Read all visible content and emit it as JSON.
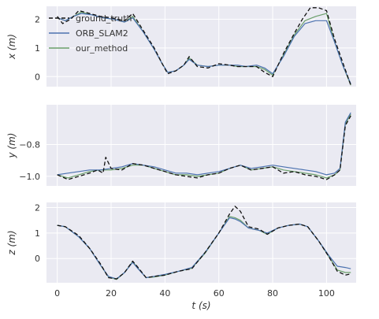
{
  "chart_data": {
    "type": "line",
    "grid": true,
    "legend_placement": "upper-left of top panel",
    "xlabel": "t (s)",
    "xlim": [
      -4,
      111
    ],
    "xticks": [
      0,
      20,
      40,
      60,
      80,
      100
    ],
    "legend": [
      {
        "name": "ground_truth",
        "color": "#111111",
        "dash": true
      },
      {
        "name": "ORB_SLAM2",
        "color": "#4c72b0",
        "dash": false
      },
      {
        "name": "our_method",
        "color": "#6a9f6a",
        "dash": false
      }
    ],
    "panels": [
      {
        "ylabel": "x (m)",
        "ylim": [
          -0.35,
          2.45
        ],
        "yticks": [
          0,
          1,
          2
        ],
        "ytick_labels": [
          "0",
          "1",
          "2"
        ],
        "series": [
          {
            "name": "ground_truth",
            "x": [
              0,
              2,
              5,
              8,
              12,
              16,
              20,
              25,
              28,
              32,
              36,
              39,
              41,
              44,
              47,
              49,
              52,
              56,
              60,
              64,
              67,
              70,
              74,
              77,
              80,
              84,
              88,
              91,
              94,
              97,
              100,
              103,
              106,
              109
            ],
            "y": [
              2.1,
              1.85,
              2.0,
              2.3,
              2.2,
              2.1,
              2.05,
              1.95,
              2.2,
              1.6,
              1.0,
              0.45,
              0.1,
              0.2,
              0.4,
              0.7,
              0.35,
              0.3,
              0.45,
              0.4,
              0.35,
              0.35,
              0.35,
              0.15,
              0.0,
              0.8,
              1.5,
              2.0,
              2.4,
              2.4,
              2.3,
              1.3,
              0.5,
              -0.3
            ]
          },
          {
            "name": "ORB_SLAM2",
            "x": [
              0,
              3,
              6,
              9,
              13,
              17,
              21,
              25,
              28,
              32,
              36,
              39,
              41,
              44,
              47,
              49,
              52,
              56,
              60,
              64,
              67,
              70,
              74,
              77,
              80,
              84,
              88,
              92,
              96,
              100,
              103,
              106,
              109
            ],
            "y": [
              2.05,
              1.95,
              2.1,
              2.2,
              2.15,
              2.05,
              2.0,
              1.9,
              2.05,
              1.55,
              0.95,
              0.45,
              0.15,
              0.2,
              0.4,
              0.6,
              0.4,
              0.35,
              0.4,
              0.4,
              0.4,
              0.35,
              0.4,
              0.3,
              0.1,
              0.7,
              1.4,
              1.85,
              1.95,
              1.95,
              1.2,
              0.4,
              -0.25
            ]
          },
          {
            "name": "our_method",
            "x": [
              0,
              3,
              6,
              9,
              13,
              17,
              21,
              25,
              28,
              32,
              36,
              39,
              41,
              44,
              47,
              49,
              52,
              56,
              60,
              64,
              67,
              70,
              74,
              77,
              80,
              84,
              88,
              92,
              96,
              100,
              103,
              106,
              109
            ],
            "y": [
              2.05,
              1.95,
              2.1,
              2.25,
              2.15,
              2.05,
              2.0,
              1.9,
              2.1,
              1.55,
              0.95,
              0.45,
              0.15,
              0.2,
              0.4,
              0.65,
              0.4,
              0.35,
              0.4,
              0.4,
              0.35,
              0.35,
              0.35,
              0.25,
              0.05,
              0.75,
              1.45,
              1.95,
              2.1,
              2.2,
              1.2,
              0.4,
              -0.3
            ]
          }
        ]
      },
      {
        "ylabel": "y (m)",
        "ylim": [
          -1.06,
          -0.55
        ],
        "yticks": [
          -1.0,
          -0.8
        ],
        "ytick_labels": [
          "−1.0",
          "−0.8"
        ],
        "series": [
          {
            "name": "ground_truth",
            "x": [
              0,
              4,
              8,
              12,
              15,
              17,
              18,
              20,
              24,
              28,
              32,
              36,
              40,
              44,
              48,
              52,
              56,
              60,
              64,
              68,
              72,
              76,
              80,
              84,
              88,
              92,
              96,
              100,
              103,
              105,
              107,
              109
            ],
            "y": [
              -0.99,
              -1.02,
              -1.0,
              -0.98,
              -0.96,
              -0.98,
              -0.88,
              -0.95,
              -0.96,
              -0.92,
              -0.93,
              -0.95,
              -0.97,
              -0.99,
              -1.0,
              -1.01,
              -0.99,
              -0.98,
              -0.95,
              -0.93,
              -0.96,
              -0.95,
              -0.94,
              -0.98,
              -0.97,
              -0.99,
              -1.0,
              -1.02,
              -0.99,
              -0.96,
              -0.68,
              -0.62
            ]
          },
          {
            "name": "ORB_SLAM2",
            "x": [
              0,
              4,
              8,
              12,
              16,
              20,
              24,
              28,
              32,
              36,
              40,
              44,
              48,
              52,
              56,
              60,
              64,
              68,
              72,
              76,
              80,
              84,
              88,
              92,
              96,
              100,
              103,
              105,
              107,
              109
            ],
            "y": [
              -0.99,
              -0.98,
              -0.97,
              -0.96,
              -0.96,
              -0.95,
              -0.94,
              -0.92,
              -0.93,
              -0.94,
              -0.96,
              -0.98,
              -0.98,
              -0.99,
              -0.98,
              -0.97,
              -0.95,
              -0.93,
              -0.95,
              -0.94,
              -0.93,
              -0.94,
              -0.95,
              -0.96,
              -0.97,
              -0.99,
              -0.98,
              -0.95,
              -0.66,
              -0.6
            ]
          },
          {
            "name": "our_method",
            "x": [
              0,
              4,
              8,
              12,
              16,
              20,
              24,
              28,
              32,
              36,
              40,
              44,
              48,
              52,
              56,
              60,
              64,
              68,
              72,
              76,
              80,
              84,
              88,
              92,
              96,
              100,
              103,
              105,
              107,
              109
            ],
            "y": [
              -0.99,
              -1.01,
              -0.99,
              -0.97,
              -0.96,
              -0.96,
              -0.95,
              -0.93,
              -0.93,
              -0.95,
              -0.97,
              -0.99,
              -0.99,
              -1.0,
              -0.99,
              -0.98,
              -0.95,
              -0.93,
              -0.96,
              -0.95,
              -0.94,
              -0.96,
              -0.97,
              -0.98,
              -0.99,
              -1.01,
              -0.99,
              -0.96,
              -0.67,
              -0.61
            ]
          }
        ]
      },
      {
        "ylabel": "z (m)",
        "ylim": [
          -0.95,
          2.2
        ],
        "yticks": [
          0,
          1,
          2
        ],
        "ytick_labels": [
          "0",
          "1",
          "2"
        ],
        "series": [
          {
            "name": "ground_truth",
            "x": [
              0,
              3,
              8,
              12,
              16,
              19,
              22,
              25,
              28,
              30,
              33,
              36,
              40,
              45,
              50,
              55,
              60,
              64,
              66,
              68,
              71,
              75,
              78,
              82,
              86,
              90,
              93,
              97,
              101,
              104,
              107,
              109
            ],
            "y": [
              1.3,
              1.25,
              0.9,
              0.4,
              -0.2,
              -0.75,
              -0.8,
              -0.55,
              -0.1,
              -0.35,
              -0.75,
              -0.7,
              -0.65,
              -0.5,
              -0.4,
              0.25,
              1.0,
              1.75,
              2.05,
              1.85,
              1.25,
              1.15,
              0.95,
              1.2,
              1.3,
              1.35,
              1.25,
              0.7,
              0.05,
              -0.5,
              -0.65,
              -0.6
            ]
          },
          {
            "name": "ORB_SLAM2",
            "x": [
              0,
              3,
              8,
              12,
              16,
              19,
              22,
              25,
              28,
              30,
              33,
              36,
              40,
              45,
              50,
              55,
              60,
              64,
              66,
              68,
              71,
              75,
              78,
              82,
              86,
              90,
              93,
              97,
              101,
              104,
              107,
              109
            ],
            "y": [
              1.3,
              1.25,
              0.85,
              0.4,
              -0.25,
              -0.7,
              -0.8,
              -0.55,
              -0.15,
              -0.4,
              -0.75,
              -0.7,
              -0.62,
              -0.5,
              -0.35,
              0.25,
              1.0,
              1.6,
              1.55,
              1.45,
              1.2,
              1.1,
              1.0,
              1.2,
              1.3,
              1.35,
              1.25,
              0.7,
              0.1,
              -0.3,
              -0.35,
              -0.4
            ]
          },
          {
            "name": "our_method",
            "x": [
              0,
              3,
              8,
              12,
              16,
              19,
              22,
              25,
              28,
              30,
              33,
              36,
              40,
              45,
              50,
              55,
              60,
              64,
              66,
              68,
              71,
              75,
              78,
              82,
              86,
              90,
              93,
              97,
              101,
              104,
              107,
              109
            ],
            "y": [
              1.3,
              1.25,
              0.85,
              0.4,
              -0.25,
              -0.72,
              -0.82,
              -0.55,
              -0.12,
              -0.38,
              -0.75,
              -0.72,
              -0.65,
              -0.5,
              -0.38,
              0.22,
              1.0,
              1.65,
              1.6,
              1.5,
              1.2,
              1.1,
              0.95,
              1.2,
              1.3,
              1.35,
              1.25,
              0.7,
              0.05,
              -0.45,
              -0.55,
              -0.55
            ]
          }
        ]
      }
    ]
  }
}
